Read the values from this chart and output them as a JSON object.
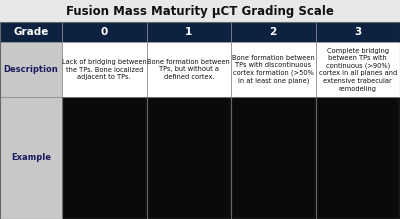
{
  "title": "Fusion Mass Maturity μCT Grading Scale",
  "header_bg": "#0d2240",
  "header_text_color": "#ffffff",
  "row_label_bg": "#c8c8c8",
  "row_label_text_color": "#1a1a5e",
  "cell_bg": "#ffffff",
  "cell_text_color": "#111111",
  "border_color": "#888888",
  "grades": [
    "0",
    "1",
    "2",
    "3"
  ],
  "desc_texts": [
    "Lack of bridging between\nthe TPs. Bone localized\nadjacent to TPs.",
    "Bone formation between\nTPs, but without a\ndefined cortex.",
    "Bone formation between\nTPs with discontinuous\ncortex formation (>50%\nin at least one plane)",
    "Complete bridging\nbetween TPs with\ncontinuous (>90%)\ncortex in all planes and\nextensive trabecular\nremodeling"
  ],
  "title_fontsize": 8.5,
  "header_fontsize": 7.5,
  "desc_fontsize": 4.8,
  "label_fontsize": 6.0,
  "fig_bg": "#e8e8e8"
}
